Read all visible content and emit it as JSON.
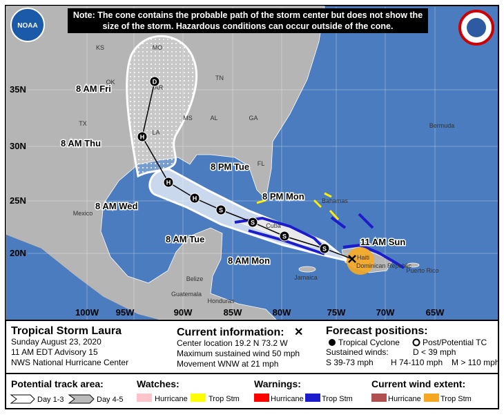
{
  "note": "Note: The cone contains the probable path of the storm center but does not show the size of the storm. Hazardous conditions can occur outside of the cone.",
  "logo": "NOAA",
  "map": {
    "places": [
      "KS",
      "MO",
      "OK",
      "AR",
      "TN",
      "MS",
      "AL",
      "GA",
      "TX",
      "LA",
      "FL",
      "Bermuda",
      "Mexico",
      "Bahamas",
      "Cuba",
      "Haiti",
      "Dominican Republic",
      "Jamaica",
      "Puerto Rico",
      "Belize",
      "Guatemala",
      "Honduras"
    ],
    "lat_labels": [
      "35N",
      "30N",
      "25N",
      "20N"
    ],
    "lon_labels": [
      "100W",
      "95W",
      "90W",
      "85W",
      "80W",
      "75W",
      "70W",
      "65W"
    ],
    "current_time": "11 AM Sun",
    "forecast": [
      {
        "type": "S"
      },
      {
        "type": "S",
        "time": "8 AM Mon"
      },
      {
        "type": "S",
        "time": "8 PM Mon"
      },
      {
        "type": "S",
        "time": "8 AM Tue"
      },
      {
        "type": "H",
        "time": "8 PM Tue"
      },
      {
        "type": "H",
        "time": "8 AM Wed"
      },
      {
        "type": "H",
        "time": "8 AM Thu"
      },
      {
        "type": "D",
        "time": "8 AM Fri"
      }
    ]
  },
  "panel": {
    "storm": "Tropical Storm Laura",
    "date": "Sunday August 23, 2020",
    "advisory": "11 AM EDT Advisory 15",
    "center": "NWS National Hurricane Center",
    "current_heading": "Current information:",
    "current_symbol": "✕",
    "location": "Center location 19.2 N 73.2 W",
    "wind": "Maximum sustained wind 50 mph",
    "movement": "Movement WNW at 21 mph",
    "forecast_heading": "Forecast positions:",
    "tropical": "Tropical Cyclone",
    "post": "Post/Potential TC",
    "sustained": "Sustained winds:",
    "d": "D < 39 mph",
    "s": "S 39-73 mph",
    "h": "H 74-110 mph",
    "m": "M > 110 mph"
  },
  "legend": {
    "track": "Potential track area:",
    "day13": "Day 1-3",
    "day45": "Day 4-5",
    "watches": "Watches:",
    "watch_hurricane": "Hurricane",
    "watch_ts": "Trop Stm",
    "warnings": "Warnings:",
    "warn_hurricane": "Hurricane",
    "warn_ts": "Trop Stm",
    "extent": "Current wind extent:",
    "ext_hurricane": "Hurricane",
    "ext_ts": "Trop Stm"
  }
}
